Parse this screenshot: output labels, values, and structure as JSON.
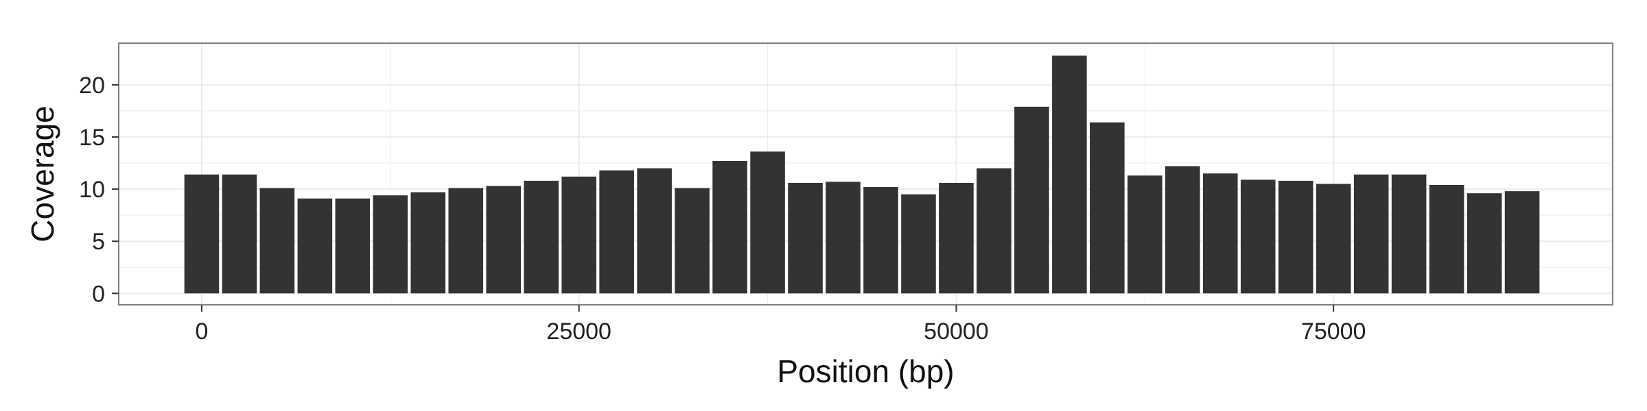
{
  "chart_data": {
    "type": "bar",
    "title": "",
    "xlabel": "Position (bp)",
    "ylabel": "Coverage",
    "xlim": [
      -5500,
      93500
    ],
    "ylim": [
      -1.1,
      24.0
    ],
    "x_ticks": [
      0,
      25000,
      50000,
      75000
    ],
    "x_tick_labels": [
      "0",
      "25000",
      "50000",
      "75000"
    ],
    "y_ticks": [
      0,
      5,
      10,
      15,
      20
    ],
    "y_tick_labels": [
      "0",
      "5",
      "10",
      "15",
      "20"
    ],
    "bar_width": 2300,
    "grid": true,
    "legend": "none",
    "x": [
      0,
      2500,
      5000,
      7500,
      10000,
      12500,
      15000,
      17500,
      20000,
      22500,
      25000,
      27500,
      30000,
      32500,
      35000,
      37500,
      40000,
      42500,
      45000,
      47500,
      50000,
      52500,
      55000,
      57500,
      60000,
      62500,
      65000,
      67500,
      70000,
      72500,
      75000,
      77500,
      80000,
      82500,
      85000,
      87500
    ],
    "values": [
      11.4,
      11.4,
      10.1,
      9.1,
      9.1,
      9.4,
      9.7,
      10.1,
      10.3,
      10.8,
      11.2,
      11.8,
      12.0,
      10.1,
      12.7,
      13.6,
      10.6,
      10.7,
      10.2,
      9.5,
      10.6,
      12.0,
      17.9,
      22.8,
      16.4,
      11.3,
      12.2,
      11.5,
      10.9,
      10.8,
      10.5,
      11.4,
      11.4,
      10.4,
      9.6,
      9.8
    ]
  },
  "colors": {
    "panel_background": "#ffffff",
    "bar_fill": "#333333",
    "gridline": "#ebebeb",
    "panel_border": "#7f7f7f"
  }
}
